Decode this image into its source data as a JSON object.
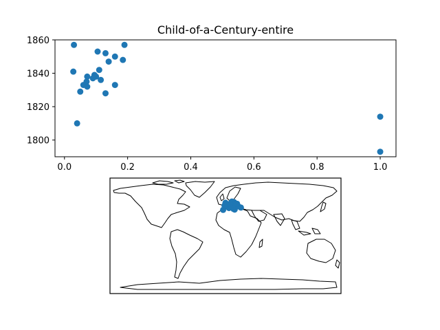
{
  "chart_data": [
    {
      "type": "scatter",
      "title": "Child-of-a-Century-entire",
      "xlabel": "",
      "ylabel": "",
      "xlim": [
        -0.03,
        1.05
      ],
      "ylim": [
        1790,
        1860
      ],
      "x_ticks": [
        0.0,
        0.2,
        0.4,
        0.6,
        0.8,
        1.0
      ],
      "x_tick_labels": [
        "0.0",
        "0.2",
        "0.4",
        "0.6",
        "0.8",
        "1.0"
      ],
      "y_ticks": [
        1800,
        1820,
        1840,
        1860
      ],
      "y_tick_labels": [
        "1800",
        "1820",
        "1840",
        "1860"
      ],
      "grid": false,
      "color": "#1f77b4",
      "points": [
        {
          "x": 0.03,
          "y": 1857
        },
        {
          "x": 0.19,
          "y": 1857
        },
        {
          "x": 0.105,
          "y": 1853
        },
        {
          "x": 0.13,
          "y": 1852
        },
        {
          "x": 0.16,
          "y": 1850
        },
        {
          "x": 0.185,
          "y": 1848
        },
        {
          "x": 0.14,
          "y": 1847
        },
        {
          "x": 0.028,
          "y": 1841
        },
        {
          "x": 0.11,
          "y": 1842
        },
        {
          "x": 0.095,
          "y": 1839
        },
        {
          "x": 0.072,
          "y": 1838
        },
        {
          "x": 0.1,
          "y": 1838
        },
        {
          "x": 0.09,
          "y": 1837
        },
        {
          "x": 0.115,
          "y": 1836
        },
        {
          "x": 0.07,
          "y": 1835
        },
        {
          "x": 0.06,
          "y": 1833
        },
        {
          "x": 0.072,
          "y": 1832
        },
        {
          "x": 0.16,
          "y": 1833
        },
        {
          "x": 0.05,
          "y": 1829
        },
        {
          "x": 0.13,
          "y": 1828
        },
        {
          "x": 0.04,
          "y": 1810
        },
        {
          "x": 1.0,
          "y": 1814
        },
        {
          "x": 1.0,
          "y": 1793
        }
      ]
    },
    {
      "type": "scatter",
      "subtype": "world-map",
      "projection": "plate-carree",
      "lon_range": [
        -180,
        180
      ],
      "lat_range": [
        -90,
        90
      ],
      "color": "#1f77b4",
      "points": [
        {
          "lon": 2.3,
          "lat": 48.9
        },
        {
          "lon": 4.8,
          "lat": 45.8
        },
        {
          "lon": 12.5,
          "lat": 41.9
        },
        {
          "lon": -3.7,
          "lat": 40.4
        },
        {
          "lon": 9.2,
          "lat": 45.5
        },
        {
          "lon": 13.4,
          "lat": 52.5
        },
        {
          "lon": 16.4,
          "lat": 48.2
        },
        {
          "lon": 0.0,
          "lat": 51.5
        },
        {
          "lon": 5.4,
          "lat": 43.3
        },
        {
          "lon": 14.3,
          "lat": 40.9
        },
        {
          "lon": 11.3,
          "lat": 43.8
        },
        {
          "lon": 20.0,
          "lat": 46.0
        },
        {
          "lon": 8.5,
          "lat": 47.4
        },
        {
          "lon": -1.5,
          "lat": 47.2
        },
        {
          "lon": 24.0,
          "lat": 44.0
        },
        {
          "lon": 10.0,
          "lat": 53.5
        },
        {
          "lon": 7.0,
          "lat": 50.0
        },
        {
          "lon": 18.0,
          "lat": 50.0
        }
      ]
    }
  ]
}
